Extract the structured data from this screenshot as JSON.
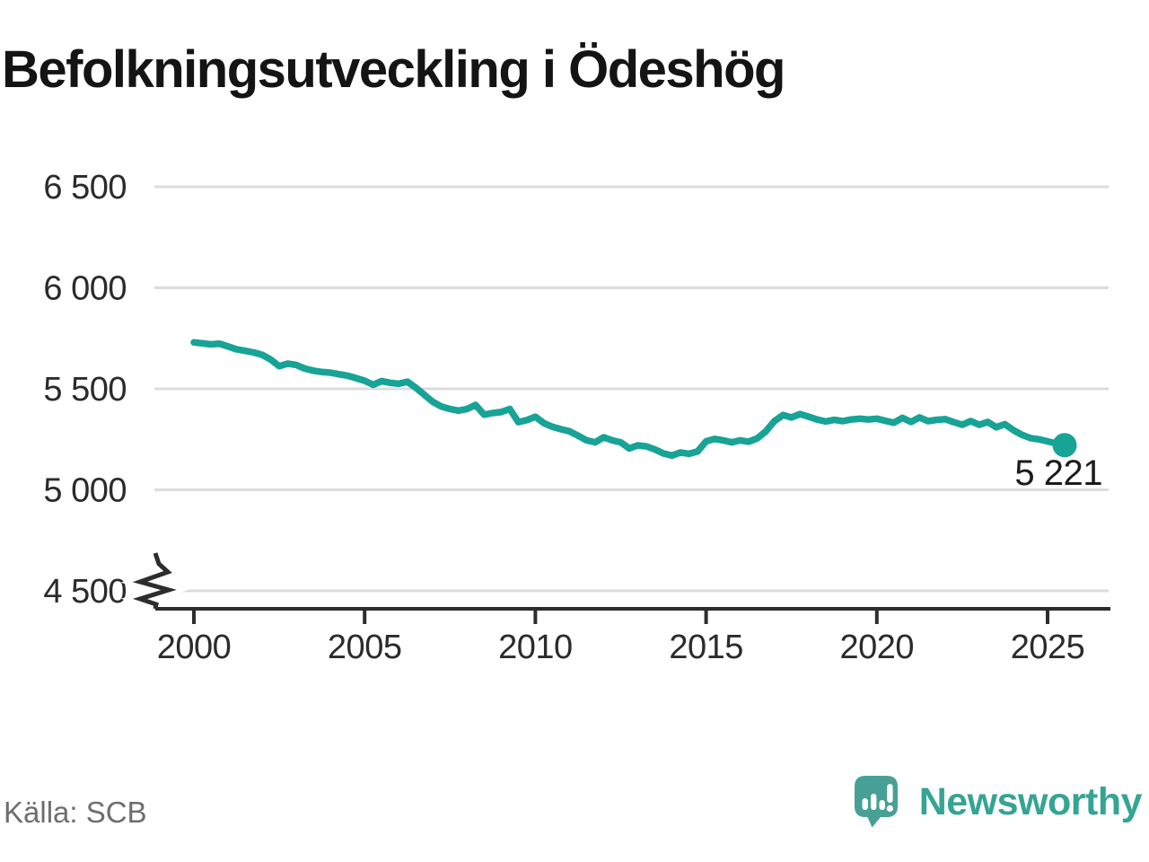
{
  "chart_data": {
    "type": "line",
    "title": "Befolkningsutveckling i Ödeshög",
    "x_start": 2000,
    "x_step": 0.25,
    "x_unit": "year",
    "xlim": [
      1998.8,
      2027.0
    ],
    "ylim": [
      4500,
      6500
    ],
    "grid": true,
    "legend": false,
    "axis_break": true,
    "x_ticks": [
      2000,
      2005,
      2010,
      2015,
      2020,
      2025
    ],
    "x_tick_labels": [
      "2000",
      "2005",
      "2010",
      "2015",
      "2020",
      "2025"
    ],
    "y_ticks": [
      6500,
      6000,
      5500,
      5000,
      4500
    ],
    "y_tick_labels": [
      "6 500",
      "6 000",
      "5 500",
      "5 000",
      "4 500"
    ],
    "end_label": "5 221",
    "end_value": 5221,
    "series": [
      {
        "name": "befolkning",
        "color": "#17a396",
        "values": [
          5730,
          5725,
          5720,
          5723,
          5710,
          5695,
          5688,
          5680,
          5668,
          5645,
          5612,
          5625,
          5618,
          5600,
          5590,
          5583,
          5580,
          5572,
          5565,
          5553,
          5540,
          5520,
          5538,
          5530,
          5525,
          5535,
          5505,
          5470,
          5435,
          5412,
          5400,
          5392,
          5400,
          5420,
          5372,
          5380,
          5385,
          5400,
          5335,
          5345,
          5362,
          5330,
          5312,
          5300,
          5290,
          5268,
          5245,
          5235,
          5260,
          5245,
          5235,
          5205,
          5220,
          5215,
          5200,
          5180,
          5170,
          5185,
          5178,
          5190,
          5240,
          5252,
          5245,
          5235,
          5245,
          5238,
          5255,
          5290,
          5340,
          5370,
          5358,
          5375,
          5362,
          5348,
          5338,
          5346,
          5340,
          5348,
          5352,
          5348,
          5352,
          5342,
          5332,
          5356,
          5336,
          5358,
          5340,
          5346,
          5350,
          5335,
          5322,
          5340,
          5322,
          5336,
          5310,
          5325,
          5295,
          5272,
          5256,
          5250,
          5240,
          5230,
          5221
        ]
      }
    ]
  },
  "footer": {
    "source": "Källa: SCB",
    "brand": "Newsworthy"
  },
  "icons": {
    "brand_icon": "newsworthy-speech-bubble-barchart-icon"
  },
  "colors": {
    "accent": "#17a396",
    "grid": "#dcdcdc",
    "axis": "#2d2d2d",
    "tick_text": "#2b2b2b",
    "value_label_text": "#1c1c1c",
    "title_text": "#141414",
    "muted_text": "#6e6e6e",
    "brand_text": "#35a494",
    "brand_icon": "#47a096"
  }
}
